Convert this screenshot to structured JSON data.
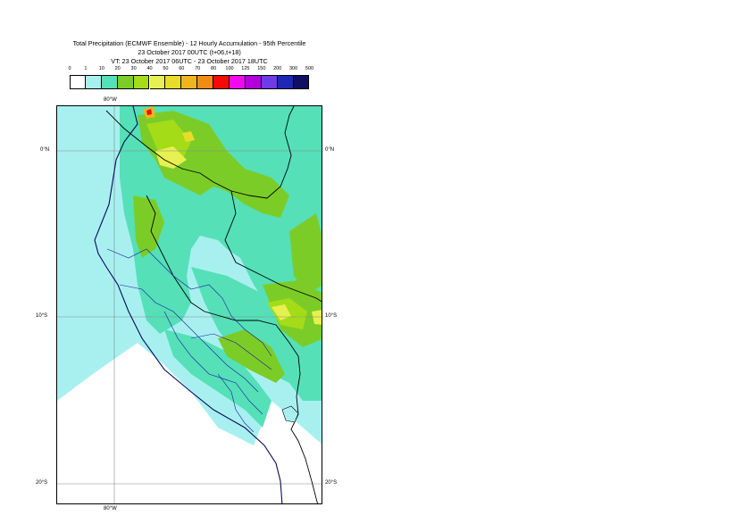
{
  "title": {
    "line1": "Total Precipitation (ECMWF Ensemble) - 12 Hourly Accumulation - 95th Percentile",
    "line2": "23 October 2017 00UTC (t+06,t+18)",
    "line3": "VT: 23 October 2017 06UTC - 23 October 2017 18UTC"
  },
  "legend": {
    "thresholds": [
      "0",
      "1",
      "10",
      "20",
      "30",
      "40",
      "50",
      "60",
      "70",
      "80",
      "100",
      "125",
      "150",
      "200",
      "300",
      "500"
    ],
    "colors": [
      "#ffffff",
      "#a8f0f0",
      "#55e0b8",
      "#7ccc28",
      "#a4dc18",
      "#e6f050",
      "#e8dc28",
      "#f0b41c",
      "#f08c14",
      "#f50a0a",
      "#f00af0",
      "#b400dc",
      "#6e3ce6",
      "#1e28b4",
      "#0f0f64"
    ]
  },
  "map": {
    "lon_label_top": "80°W",
    "lon_label_bottom": "80°W",
    "lat_labels_left": [
      "0°N",
      "10°S",
      "20°S"
    ],
    "lat_labels_right": [
      "0°N",
      "10°S",
      "20°S"
    ]
  }
}
